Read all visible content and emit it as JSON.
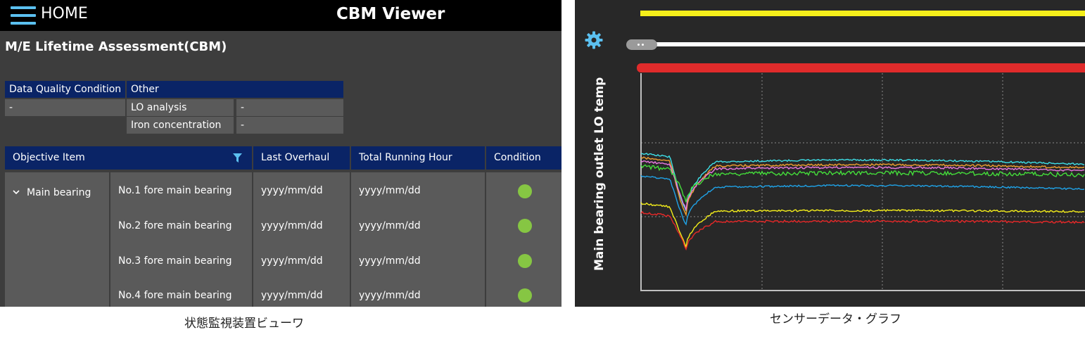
{
  "header": {
    "home_label": "HOME",
    "app_title": "CBM Viewer",
    "menu_icon": "hamburger-menu-icon"
  },
  "page": {
    "title": "M/E Lifetime Assessment(CBM)"
  },
  "data_quality": {
    "header": "Data Quality Condition",
    "value": "-",
    "other_header": "Other",
    "rows": [
      {
        "label": "LO analysis",
        "value": "-"
      },
      {
        "label": "Iron concentration",
        "value": "-"
      }
    ]
  },
  "table": {
    "columns": {
      "objective": "Objective Item",
      "overhaul": "Last Overhaul",
      "running": "Total Running Hour",
      "condition": "Condition"
    },
    "filter_icon": "filter-icon",
    "group": {
      "expand_icon": "chevron-down-icon",
      "label": "Main bearing"
    },
    "rows": [
      {
        "item": "No.1 fore main bearing",
        "overhaul": "yyyy/mm/dd",
        "running": "yyyy/mm/dd",
        "condition_color": "#86c643"
      },
      {
        "item": "No.2 fore main bearing",
        "overhaul": "yyyy/mm/dd",
        "running": "yyyy/mm/dd",
        "condition_color": "#86c643"
      },
      {
        "item": "No.3 fore main bearing",
        "overhaul": "yyyy/mm/dd",
        "running": "yyyy/mm/dd",
        "condition_color": "#86c643"
      },
      {
        "item": "No.4 fore main bearing",
        "overhaul": "yyyy/mm/dd",
        "running": "yyyy/mm/dd",
        "condition_color": "#86c643"
      }
    ]
  },
  "graph": {
    "ylabel": "Main bearing outlet LO temp",
    "settings_icon": "gear-icon",
    "range_bar_colors": [
      "#f5ef1a",
      "#ffffff",
      "#e02b2b"
    ],
    "series_colors": [
      "#3ee0e8",
      "#f0a030",
      "#e878e0",
      "#44dd3a",
      "#1fa3e8",
      "#f5ef1a",
      "#e82828"
    ]
  },
  "captions": {
    "left": "状態監視装置ビューワ",
    "right": "センサーデータ・グラフ"
  }
}
